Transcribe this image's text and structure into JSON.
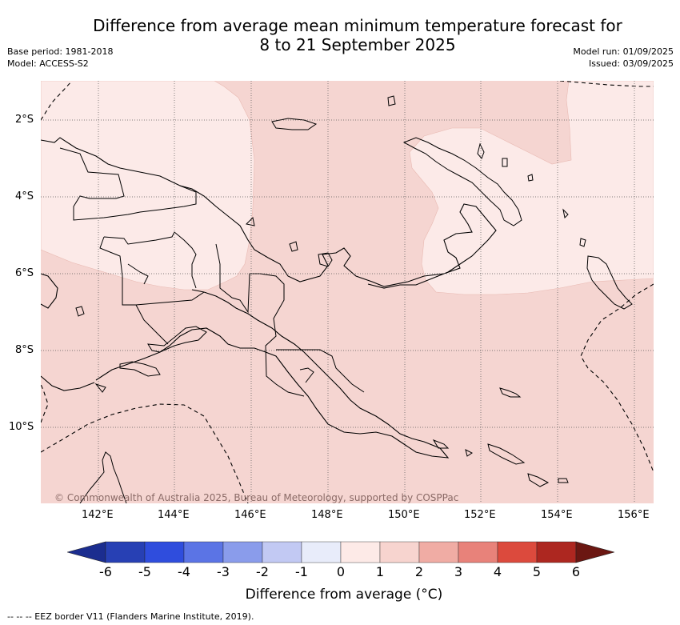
{
  "title": {
    "line1": "Difference from average mean minimum temperature forecast for",
    "line2": "8 to 21 September 2025"
  },
  "meta_left": {
    "base_period": "Base period: 1981-2018",
    "model": "Model: ACCESS-S2"
  },
  "meta_right": {
    "model_run": "Model run: 01/09/2025",
    "issued": "Issued: 03/09/2025"
  },
  "map": {
    "lon_labels": [
      "142°E",
      "144°E",
      "146°E",
      "148°E",
      "150°E",
      "152°E",
      "154°E",
      "156°E"
    ],
    "lat_labels": [
      "2°S",
      "4°S",
      "6°S",
      "8°S",
      "10°S"
    ],
    "copyright": "© Commonwealth of Australia 2025, Bureau of Meteorology, supported by COSPPac",
    "colors": {
      "near_avg_warm": "#fceae8",
      "warm_0_1": "#f5d5d1",
      "coast": "#000000"
    }
  },
  "colorbar": {
    "label": "Difference from average (°C)",
    "ticks": [
      "-6",
      "-5",
      "-4",
      "-3",
      "-2",
      "-1",
      "0",
      "1",
      "2",
      "3",
      "4",
      "5",
      "6"
    ],
    "colors": [
      "#1b2d8f",
      "#2740b4",
      "#2f4ddd",
      "#5b74e5",
      "#8a9ceb",
      "#c2c9f3",
      "#e8ecfa",
      "#fdeae7",
      "#f7d4cf",
      "#f0aca4",
      "#e8827a",
      "#dc4a3d",
      "#ad2720",
      "#6b1712"
    ]
  },
  "footnote": "-- -- -- EEZ border V11 (Flanders Marine Institute, 2019)."
}
